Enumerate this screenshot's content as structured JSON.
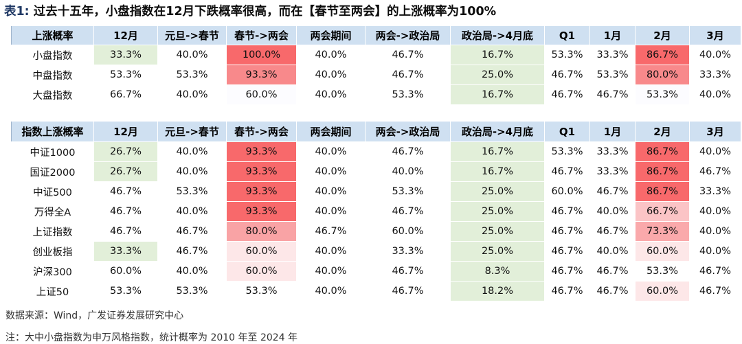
{
  "title": {
    "label": "表1:",
    "text": "过去十五年，小盘指数在12月下跌概率很高，而在【春节至两会】的上涨概率为100%"
  },
  "columns": [
    "12月",
    "元旦->春节",
    "春节->两会",
    "两会期间",
    "两会->政治局",
    "政治局->4月底",
    "Q1",
    "1月",
    "2月",
    "3月"
  ],
  "table1": {
    "header": "上涨概率",
    "rows": [
      {
        "label": "小盘指数",
        "values": [
          "33.3%",
          "40.0%",
          "100.0%",
          "40.0%",
          "46.7%",
          "16.7%",
          "53.3%",
          "33.3%",
          "86.7%",
          "40.0%"
        ],
        "fills": [
          "#e2efd9",
          "",
          "#f8696b",
          "",
          "",
          "#e2efd9",
          "",
          "",
          "#f8696b",
          ""
        ]
      },
      {
        "label": "中盘指数",
        "values": [
          "53.3%",
          "53.3%",
          "93.3%",
          "40.0%",
          "46.7%",
          "25.0%",
          "46.7%",
          "53.3%",
          "80.0%",
          "33.3%"
        ],
        "fills": [
          "",
          "",
          "#f8898b",
          "",
          "",
          "#e2efd9",
          "",
          "",
          "#f8898b",
          ""
        ]
      },
      {
        "label": "大盘指数",
        "values": [
          "66.7%",
          "40.0%",
          "60.0%",
          "40.0%",
          "53.3%",
          "16.7%",
          "46.7%",
          "46.7%",
          "53.3%",
          "40.0%"
        ],
        "fills": [
          "",
          "",
          "#fcfcff",
          "",
          "",
          "#e2efd9",
          "",
          "",
          "#fcfcff",
          ""
        ]
      }
    ]
  },
  "table2": {
    "header": "指数上涨概率",
    "rows": [
      {
        "label": "中证1000",
        "values": [
          "26.7%",
          "40.0%",
          "93.3%",
          "40.0%",
          "46.7%",
          "16.7%",
          "53.3%",
          "33.3%",
          "86.7%",
          "40.0%"
        ],
        "fills": [
          "#e2efd9",
          "",
          "#f8696b",
          "",
          "",
          "#e2efd9",
          "",
          "",
          "#f8696b",
          ""
        ]
      },
      {
        "label": "国证2000",
        "values": [
          "26.7%",
          "40.0%",
          "93.3%",
          "40.0%",
          "40.0%",
          "16.7%",
          "46.7%",
          "33.3%",
          "86.7%",
          "46.7%"
        ],
        "fills": [
          "#e2efd9",
          "",
          "#f8696b",
          "",
          "",
          "#e2efd9",
          "",
          "",
          "#f8696b",
          ""
        ]
      },
      {
        "label": "中证500",
        "values": [
          "46.7%",
          "53.3%",
          "93.3%",
          "40.0%",
          "53.3%",
          "25.0%",
          "60.0%",
          "46.7%",
          "86.7%",
          "33.3%"
        ],
        "fills": [
          "",
          "",
          "#f8696b",
          "",
          "",
          "#e2efd9",
          "",
          "",
          "#f8696b",
          ""
        ]
      },
      {
        "label": "万得全A",
        "values": [
          "46.7%",
          "40.0%",
          "93.3%",
          "40.0%",
          "46.7%",
          "25.0%",
          "46.7%",
          "40.0%",
          "66.7%",
          "40.0%"
        ],
        "fills": [
          "",
          "",
          "#f8696b",
          "",
          "",
          "#e2efd9",
          "",
          "",
          "#fbc4c6",
          ""
        ]
      },
      {
        "label": "上证指数",
        "values": [
          "46.7%",
          "46.7%",
          "80.0%",
          "46.7%",
          "60.0%",
          "25.0%",
          "46.7%",
          "46.7%",
          "73.3%",
          "40.0%"
        ],
        "fills": [
          "",
          "",
          "#f9a3a5",
          "",
          "",
          "#e2efd9",
          "",
          "",
          "#faa9ab",
          ""
        ]
      },
      {
        "label": "创业板指",
        "values": [
          "33.3%",
          "46.7%",
          "60.0%",
          "40.0%",
          "33.3%",
          "25.0%",
          "46.7%",
          "40.0%",
          "60.0%",
          "40.0%"
        ],
        "fills": [
          "#e2efd9",
          "",
          "#fde7e8",
          "",
          "",
          "#e2efd9",
          "",
          "",
          "#fde7e8",
          ""
        ]
      },
      {
        "label": "沪深300",
        "values": [
          "60.0%",
          "40.0%",
          "60.0%",
          "40.0%",
          "46.7%",
          "8.3%",
          "46.7%",
          "46.7%",
          "53.3%",
          "46.7%"
        ],
        "fills": [
          "",
          "",
          "#fde7e8",
          "",
          "",
          "#e2efd9",
          "",
          "",
          "",
          ""
        ]
      },
      {
        "label": "上证50",
        "values": [
          "53.3%",
          "53.3%",
          "53.3%",
          "40.0%",
          "46.7%",
          "18.2%",
          "46.7%",
          "46.7%",
          "60.0%",
          "46.7%"
        ],
        "fills": [
          "",
          "",
          "",
          "",
          "",
          "#e2efd9",
          "",
          "",
          "#fde7e8",
          ""
        ]
      }
    ]
  },
  "source": "数据来源：Wind，广发证券发展研究中心",
  "footnote": "注：大中小盘指数为申万风格指数，统计概率为 2010 年至 2024 年"
}
